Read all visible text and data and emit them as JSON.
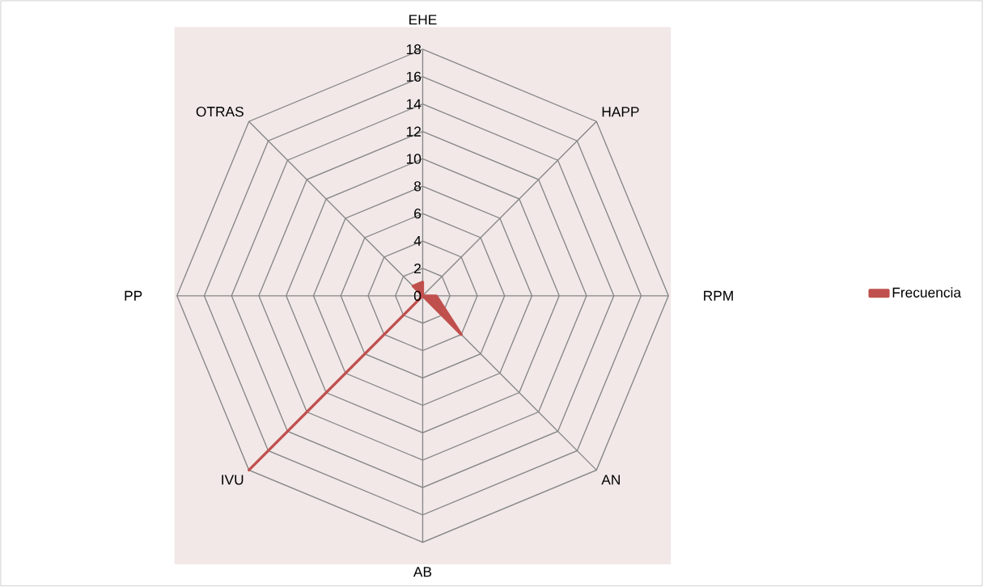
{
  "chart_data": {
    "type": "radar",
    "categories": [
      "EHE",
      "HAPP",
      "RPM",
      "AN",
      "AB",
      "IVU",
      "PP",
      "OTRAS"
    ],
    "series": [
      {
        "name": "Frecuencia",
        "color": "#c0504d",
        "values": [
          1,
          0,
          1,
          4,
          0,
          18,
          0,
          1
        ]
      }
    ],
    "ylim": [
      0,
      18
    ],
    "yticks": [
      0,
      2,
      4,
      6,
      8,
      10,
      12,
      14,
      16,
      18
    ],
    "legend": "right"
  }
}
